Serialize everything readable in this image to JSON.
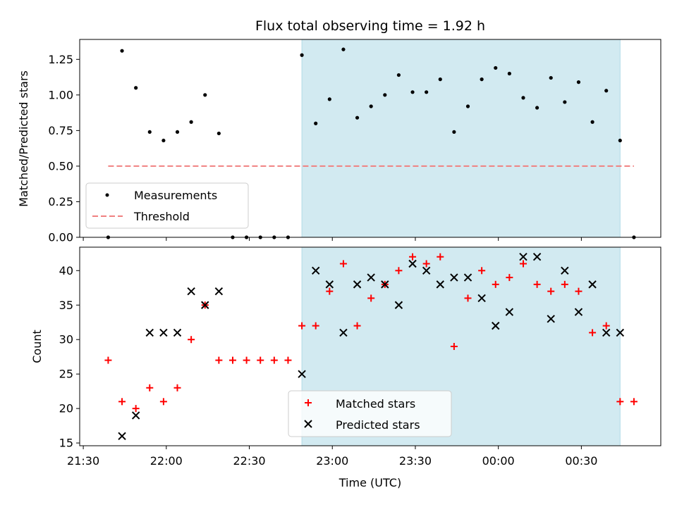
{
  "figure": {
    "title": "Flux total observing time = 1.92 h",
    "xlabel": "Time (UTC)",
    "x_tick_labels": [
      "21:30",
      "22:00",
      "22:30",
      "23:00",
      "23:30",
      "00:00",
      "00:30"
    ],
    "shade_color": "#add8e6",
    "threshold_color": "#f08080",
    "matched_color": "#ff0000",
    "predicted_color": "#000000"
  },
  "chart_data": [
    {
      "type": "scatter",
      "title": "Flux total observing time = 1.92 h",
      "xlabel": "",
      "ylabel": "Matched/Predicted stars",
      "ylim": [
        0.0,
        1.39
      ],
      "y_ticks": [
        0.0,
        0.25,
        0.5,
        0.75,
        1.0,
        1.25
      ],
      "y_tick_labels": [
        "0.00",
        "0.25",
        "0.50",
        "0.75",
        "1.00",
        "1.25"
      ],
      "x_ticks": [
        "21:30",
        "22:00",
        "22:30",
        "23:00",
        "23:30",
        "00:00",
        "00:30"
      ],
      "x": [
        "21:39",
        "21:44",
        "21:49",
        "21:54",
        "21:59",
        "22:04",
        "22:09",
        "22:14",
        "22:19",
        "22:24",
        "22:29",
        "22:34",
        "22:39",
        "22:44",
        "22:49",
        "22:54",
        "22:59",
        "23:04",
        "23:09",
        "23:14",
        "23:19",
        "23:24",
        "23:29",
        "23:34",
        "23:39",
        "23:44",
        "23:49",
        "23:54",
        "23:59",
        "00:04",
        "00:09",
        "00:14",
        "00:19",
        "00:24",
        "00:29",
        "00:34",
        "00:39",
        "00:44",
        "00:49"
      ],
      "series": [
        {
          "name": "Measurements",
          "marker": "dot",
          "values": [
            0.0,
            1.31,
            1.05,
            0.74,
            0.68,
            0.74,
            0.81,
            1.0,
            0.73,
            0.0,
            0.0,
            0.0,
            0.0,
            0.0,
            1.28,
            0.8,
            0.97,
            1.32,
            0.84,
            0.92,
            1.0,
            1.14,
            1.02,
            1.02,
            1.11,
            0.74,
            0.92,
            1.11,
            1.19,
            1.15,
            0.98,
            0.91,
            1.12,
            0.95,
            1.09,
            0.81,
            1.03,
            0.68,
            0.0
          ]
        },
        {
          "name": "Threshold",
          "marker": "dashed-line",
          "x_range": [
            "21:39",
            "00:49"
          ],
          "value": 0.5
        }
      ],
      "shaded_region": {
        "x_start": "22:49",
        "x_end": "00:44"
      },
      "legend": {
        "position": "lower-left",
        "entries": [
          "Measurements",
          "Threshold"
        ]
      },
      "grid": false
    },
    {
      "type": "scatter",
      "title": "",
      "xlabel": "Time (UTC)",
      "ylabel": "Count",
      "ylim": [
        14.6,
        43.4
      ],
      "y_ticks": [
        15,
        20,
        25,
        30,
        35,
        40
      ],
      "y_tick_labels": [
        "15",
        "20",
        "25",
        "30",
        "35",
        "40"
      ],
      "x_ticks": [
        "21:30",
        "22:00",
        "22:30",
        "23:00",
        "23:30",
        "00:00",
        "00:30"
      ],
      "x": [
        "21:39",
        "21:44",
        "21:49",
        "21:54",
        "21:59",
        "22:04",
        "22:09",
        "22:14",
        "22:19",
        "22:24",
        "22:29",
        "22:34",
        "22:39",
        "22:44",
        "22:49",
        "22:54",
        "22:59",
        "23:04",
        "23:09",
        "23:14",
        "23:19",
        "23:24",
        "23:29",
        "23:34",
        "23:39",
        "23:44",
        "23:49",
        "23:54",
        "23:59",
        "00:04",
        "00:09",
        "00:14",
        "00:19",
        "00:24",
        "00:29",
        "00:34",
        "00:39",
        "00:44",
        "00:49"
      ],
      "series": [
        {
          "name": "Matched stars",
          "marker": "plus",
          "values": [
            27,
            21,
            20,
            23,
            21,
            23,
            30,
            35,
            27,
            27,
            27,
            27,
            27,
            27,
            32,
            32,
            37,
            41,
            32,
            36,
            38,
            40,
            42,
            41,
            42,
            29,
            36,
            40,
            38,
            39,
            41,
            38,
            37,
            38,
            37,
            31,
            32,
            21,
            21
          ]
        },
        {
          "name": "Predicted stars",
          "marker": "x",
          "values": [
            null,
            16,
            19,
            31,
            31,
            31,
            37,
            35,
            37,
            null,
            null,
            null,
            null,
            null,
            25,
            40,
            38,
            31,
            38,
            39,
            38,
            35,
            41,
            40,
            38,
            39,
            39,
            36,
            32,
            34,
            42,
            42,
            33,
            40,
            34,
            38,
            31,
            31,
            null
          ]
        }
      ],
      "shaded_region": {
        "x_start": "22:49",
        "x_end": "00:44"
      },
      "legend": {
        "position": "lower-center",
        "entries": [
          "Matched stars",
          "Predicted stars"
        ]
      },
      "grid": false
    }
  ]
}
